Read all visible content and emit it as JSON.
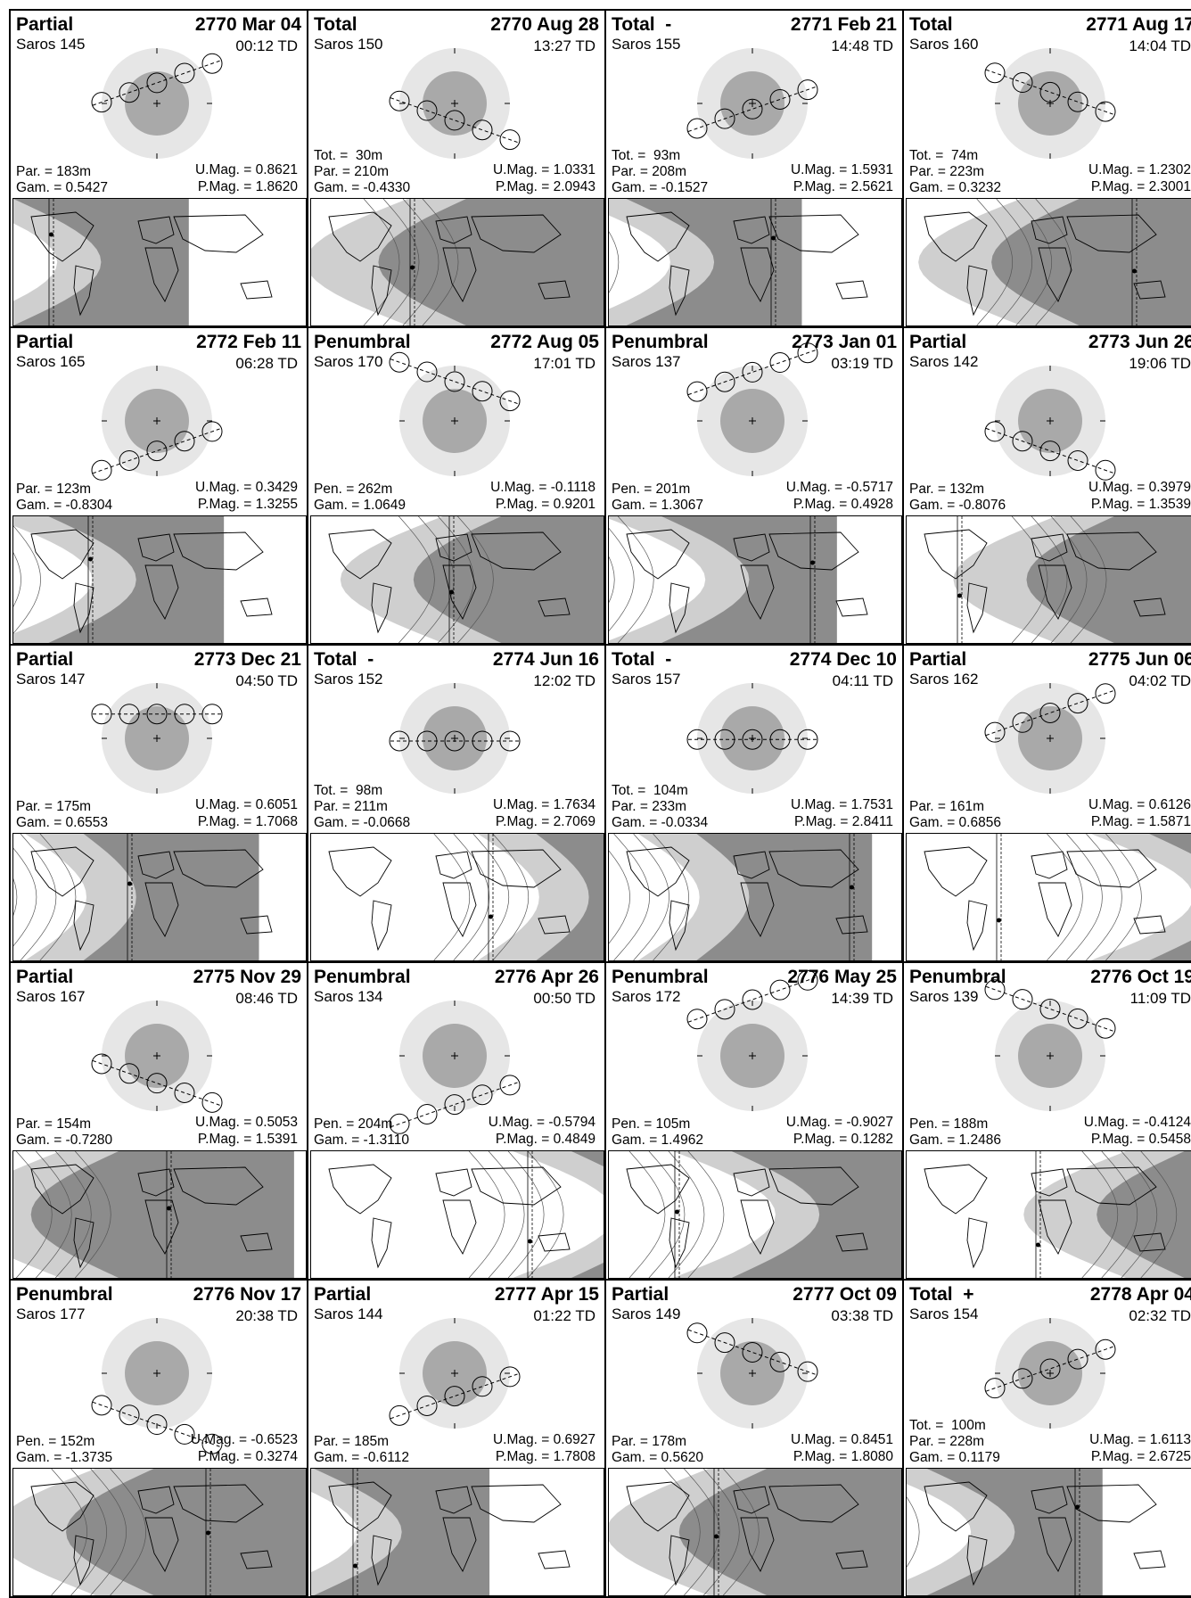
{
  "figure": "Lunar eclipse panels",
  "labels": {
    "tot": "Tot. = ",
    "par": "Par. = ",
    "pen": "Pen. = ",
    "gam": "Gam. = ",
    "umag": "U.Mag. = ",
    "pmag": "P.Mag. = "
  },
  "colors": {
    "umbra": "#a9a9a9",
    "penumbra": "#e6e6e6",
    "night": "#8c8c8c",
    "shade": "#cfcfcf",
    "line": "#000000"
  },
  "eclipses": [
    {
      "kind": "Partial",
      "date": "2770 Mar 04",
      "saros": "Saros 145",
      "time": "00:12 TD",
      "tot": "",
      "par": "183m",
      "pen": "",
      "gam": "0.5427",
      "umag": "0.8621",
      "pmag": "1.8620",
      "path_dir": 1,
      "path_y": 0.55
    },
    {
      "kind": "Total",
      "date": "2770 Aug 28",
      "saros": "Saros 150",
      "time": "13:27 TD",
      "tot": "30m",
      "par": "210m",
      "pen": "",
      "gam": "-0.4330",
      "umag": "1.0331",
      "pmag": "2.0943",
      "path_dir": -1,
      "path_y": -0.45
    },
    {
      "kind": "Total  -",
      "date": "2771 Feb 21",
      "saros": "Saros 155",
      "time": "14:48 TD",
      "tot": "93m",
      "par": "208m",
      "pen": "",
      "gam": "-0.1527",
      "umag": "1.5931",
      "pmag": "2.5621",
      "path_dir": 1,
      "path_y": -0.15
    },
    {
      "kind": "Total",
      "date": "2771 Aug 17",
      "saros": "Saros 160",
      "time": "14:04 TD",
      "tot": "74m",
      "par": "223m",
      "pen": "",
      "gam": "0.3232",
      "umag": "1.2302",
      "pmag": "2.3001",
      "path_dir": -1,
      "path_y": 0.3
    },
    {
      "kind": "Partial",
      "date": "2772 Feb 11",
      "saros": "Saros 165",
      "time": "06:28 TD",
      "tot": "",
      "par": "123m",
      "pen": "",
      "gam": "-0.8304",
      "umag": "0.3429",
      "pmag": "1.3255",
      "path_dir": 1,
      "path_y": -0.8
    },
    {
      "kind": "Penumbral",
      "date": "2772 Aug 05",
      "saros": "Saros 170",
      "time": "17:01 TD",
      "tot": "",
      "par": "",
      "pen": "262m",
      "gam": "1.0649",
      "umag": "-0.1118",
      "pmag": "0.9201",
      "path_dir": -1,
      "path_y": 1.05
    },
    {
      "kind": "Penumbral",
      "date": "2773 Jan 01",
      "saros": "Saros 137",
      "time": "03:19 TD",
      "tot": "",
      "par": "",
      "pen": "201m",
      "gam": "1.3067",
      "umag": "-0.5717",
      "pmag": "0.4928",
      "path_dir": 1,
      "path_y": 1.3
    },
    {
      "kind": "Partial",
      "date": "2773 Jun 26",
      "saros": "Saros 142",
      "time": "19:06 TD",
      "tot": "",
      "par": "132m",
      "pen": "",
      "gam": "-0.8076",
      "umag": "0.3979",
      "pmag": "1.3539",
      "path_dir": -1,
      "path_y": -0.8
    },
    {
      "kind": "Partial",
      "date": "2773 Dec 21",
      "saros": "Saros 147",
      "time": "04:50 TD",
      "tot": "",
      "par": "175m",
      "pen": "",
      "gam": "0.6553",
      "umag": "0.6051",
      "pmag": "1.7068",
      "path_dir": 0,
      "path_y": 0.65
    },
    {
      "kind": "Total  -",
      "date": "2774 Jun 16",
      "saros": "Saros 152",
      "time": "12:02 TD",
      "tot": "98m",
      "par": "211m",
      "pen": "",
      "gam": "-0.0668",
      "umag": "1.7634",
      "pmag": "2.7069",
      "path_dir": 0,
      "path_y": -0.07
    },
    {
      "kind": "Total  -",
      "date": "2774 Dec 10",
      "saros": "Saros 157",
      "time": "04:11 TD",
      "tot": "104m",
      "par": "233m",
      "pen": "",
      "gam": "-0.0334",
      "umag": "1.7531",
      "pmag": "2.8411",
      "path_dir": 0,
      "path_y": -0.03
    },
    {
      "kind": "Partial",
      "date": "2775 Jun 06",
      "saros": "Saros 162",
      "time": "04:02 TD",
      "tot": "",
      "par": "161m",
      "pen": "",
      "gam": "0.6856",
      "umag": "0.6126",
      "pmag": "1.5871",
      "path_dir": 1,
      "path_y": 0.68
    },
    {
      "kind": "Partial",
      "date": "2775 Nov 29",
      "saros": "Saros 167",
      "time": "08:46 TD",
      "tot": "",
      "par": "154m",
      "pen": "",
      "gam": "-0.7280",
      "umag": "0.5053",
      "pmag": "1.5391",
      "path_dir": -1,
      "path_y": -0.73
    },
    {
      "kind": "Penumbral",
      "date": "2776 Apr 26",
      "saros": "Saros 134",
      "time": "00:50 TD",
      "tot": "",
      "par": "",
      "pen": "204m",
      "gam": "-1.3110",
      "umag": "-0.5794",
      "pmag": "0.4849",
      "path_dir": 1,
      "path_y": -1.3
    },
    {
      "kind": "Penumbral",
      "date": "2776 May 25",
      "saros": "Saros 172",
      "time": "14:39 TD",
      "tot": "",
      "par": "",
      "pen": "105m",
      "gam": "1.4962",
      "umag": "-0.9027",
      "pmag": "0.1282",
      "path_dir": 1,
      "path_y": 1.5
    },
    {
      "kind": "Penumbral",
      "date": "2776 Oct 19",
      "saros": "Saros 139",
      "time": "11:09 TD",
      "tot": "",
      "par": "",
      "pen": "188m",
      "gam": "1.2486",
      "umag": "-0.4124",
      "pmag": "0.5458",
      "path_dir": -1,
      "path_y": 1.25
    },
    {
      "kind": "Penumbral",
      "date": "2776 Nov 17",
      "saros": "Saros 177",
      "time": "20:38 TD",
      "tot": "",
      "par": "",
      "pen": "152m",
      "gam": "-1.3735",
      "umag": "-0.6523",
      "pmag": "0.3274",
      "path_dir": -1,
      "path_y": -1.37
    },
    {
      "kind": "Partial",
      "date": "2777 Apr 15",
      "saros": "Saros 144",
      "time": "01:22 TD",
      "tot": "",
      "par": "185m",
      "pen": "",
      "gam": "-0.6112",
      "umag": "0.6927",
      "pmag": "1.7808",
      "path_dir": 1,
      "path_y": -0.61
    },
    {
      "kind": "Partial",
      "date": "2777 Oct 09",
      "saros": "Saros 149",
      "time": "03:38 TD",
      "tot": "",
      "par": "178m",
      "pen": "",
      "gam": "0.5620",
      "umag": "0.8451",
      "pmag": "1.8080",
      "path_dir": -1,
      "path_y": 0.56
    },
    {
      "kind": "Total  +",
      "date": "2778 Apr 04",
      "saros": "Saros 154",
      "time": "02:32 TD",
      "tot": "100m",
      "par": "228m",
      "pen": "",
      "gam": "0.1179",
      "umag": "1.6113",
      "pmag": "2.6725",
      "path_dir": 1,
      "path_y": 0.12
    }
  ]
}
